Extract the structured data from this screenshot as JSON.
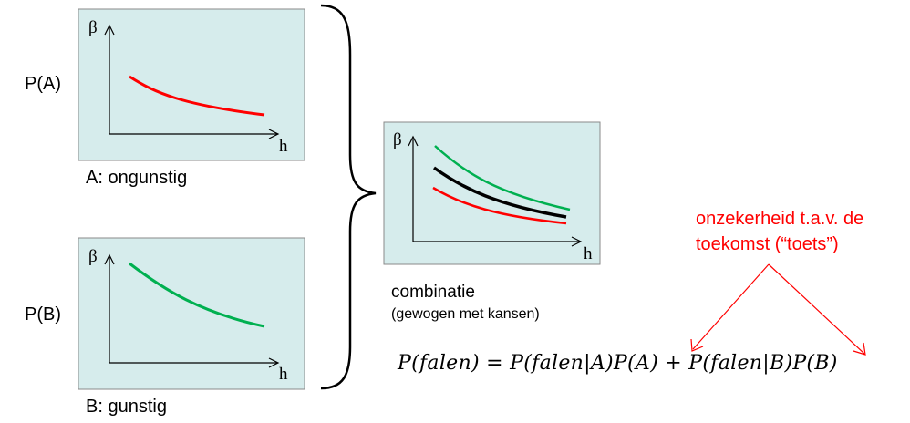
{
  "labels": {
    "prob_a": "P(A)",
    "prob_b": "P(B)",
    "scenario_a": "A: ongunstig",
    "scenario_b": "B: gunstig",
    "combination": "combinatie",
    "combination_note": "(gewogen met kansen)",
    "uncertainty_line1": "onzekerheid t.a.v. de",
    "uncertainty_line2": "toekomst (“toets”)"
  },
  "axes": {
    "y_symbol": "β",
    "x_symbol": "h"
  },
  "formula": "P(falen) = P(falen|A)P(A) + P(falen|B)P(B)",
  "colors": {
    "panel_fill": "#d6ecec",
    "panel_border": "#8a8a8a",
    "unfavourable": "#ff0000",
    "favourable": "#00b050",
    "combined": "#000000",
    "annotation": "#ff0000"
  }
}
